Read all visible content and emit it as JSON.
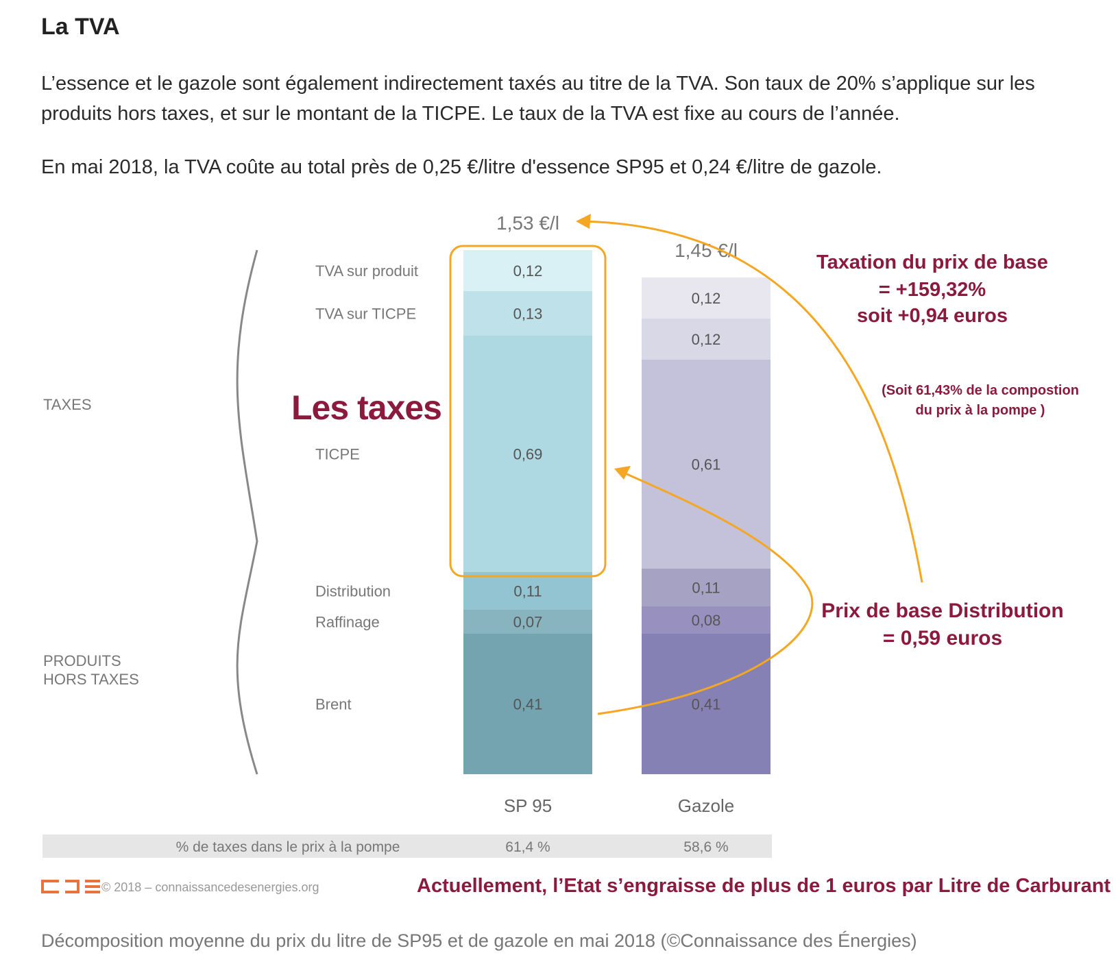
{
  "article": {
    "heading": "La TVA",
    "paragraph_1": "L’essence et le gazole sont également indirectement taxés au titre de la TVA. Son taux de 20% s’applique sur les produits hors taxes, et sur le montant de la TICPE. Le taux de la TVA est fixe au cours de l’année.",
    "paragraph_2": "En mai 2018, la TVA coûte au total près de 0,25 €/litre d'essence SP95 et 0,24 €/litre de gazole.",
    "caption": "Décomposition moyenne du prix du litre de SP95 et de gazole en mai 2018 (©Connaissance des Énergies)"
  },
  "chart_data": {
    "type": "bar",
    "stacked": true,
    "categories": [
      "SP 95",
      "Gazole"
    ],
    "totals": [
      "1,53 €/l",
      "1,45 €/l"
    ],
    "series": [
      {
        "name": "Brent",
        "values": [
          0.41,
          0.41
        ],
        "labels": [
          "0,41",
          "0,41"
        ]
      },
      {
        "name": "Raffinage",
        "values": [
          0.07,
          0.08
        ],
        "labels": [
          "0,07",
          "0,08"
        ]
      },
      {
        "name": "Distribution",
        "values": [
          0.11,
          0.11
        ],
        "labels": [
          "0,11",
          "0,11"
        ]
      },
      {
        "name": "TICPE",
        "values": [
          0.69,
          0.61
        ],
        "labels": [
          "0,69",
          "0,61"
        ]
      },
      {
        "name": "TVA sur TICPE",
        "values": [
          0.13,
          0.12
        ],
        "labels": [
          "0,13",
          "0,12"
        ]
      },
      {
        "name": "TVA sur produit",
        "values": [
          0.12,
          0.12
        ],
        "labels": [
          "0,12",
          "0,12"
        ]
      }
    ],
    "colors": {
      "SP 95": [
        "#74a4b0",
        "#88b4c0",
        "#93c4d1",
        "#aed8e2",
        "#bfe2ea",
        "#d9f0f5"
      ],
      "Gazole": [
        "#8581b4",
        "#9891c0",
        "#a6a2c3",
        "#c4c1db",
        "#d9d8e6",
        "#e8e7ef"
      ]
    },
    "groups": [
      "TAXES",
      "PRODUITS HORS TAXES"
    ],
    "tax_share": {
      "label": "% de taxes dans le prix à la pompe",
      "values": [
        "61,4 %",
        "58,6 %"
      ]
    },
    "credit": "© 2018 – connaissancedesenergies.org",
    "logo_text": "CDE"
  },
  "annotations": {
    "les_taxes": "Les taxes",
    "taxation_lines": [
      "Taxation du prix de base",
      "= +159,32%",
      "soit +0,94 euros"
    ],
    "soit_lines": [
      "(Soit 61,43% de la compostion",
      "du prix à la pompe )"
    ],
    "prix_lines": [
      "Prix de base Distribution",
      "= 0,59 euros"
    ],
    "bottom_line": "Actuellement, l’Etat s’engraisse de plus de 1 euros par Litre de Carburant",
    "annotation_color": "#8b1a3e",
    "arrow_color": "#f5a623"
  }
}
